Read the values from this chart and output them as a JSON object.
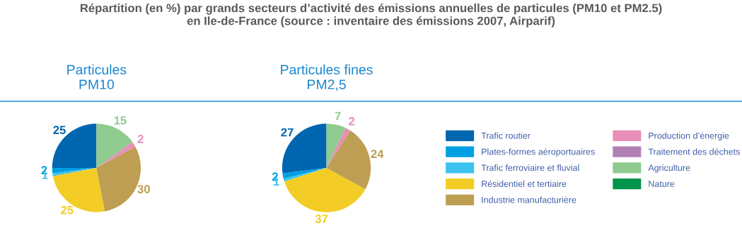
{
  "chart_data": [
    {
      "type": "pie",
      "title": "Particules\nPM10",
      "legend": "right",
      "annotations": [
        "Répartition (en %) par grands secteurs d’activité des émissions annuelles de particules (PM10 et PM2.5)\nen Ile-de-France (source : inventaire des émissions 2007, Airparif)"
      ],
      "categories": [
        "Trafic routier",
        "Plates-formes aéroportuaires",
        "Trafic ferroviaire et fluvial",
        "Résidentiel et tertiaire",
        "Industrie manufacturière",
        "Production d’énergie",
        "Traitement des déchets",
        "Agriculture",
        "Nature"
      ],
      "values": [
        25,
        2,
        1,
        25,
        30,
        2,
        0,
        15,
        0
      ],
      "value_labels": [
        "25",
        "2",
        "1",
        "25",
        "30",
        "2",
        null,
        "15",
        null
      ],
      "colors": [
        "#0066b0",
        "#009fe3",
        "#3cc3ef",
        "#f3cd25",
        "#bd9e52",
        "#e88fb8",
        "#b07fb4",
        "#8fcb8e",
        "#00954a"
      ]
    },
    {
      "type": "pie",
      "title": "Particules fines\nPM2,5",
      "categories": [
        null,
        null,
        null,
        null,
        null,
        null,
        null,
        null,
        null
      ],
      "values": [
        27,
        2,
        1,
        37,
        24,
        2,
        0,
        7,
        0
      ],
      "value_labels": [
        "27",
        "2",
        "1",
        "37",
        "24",
        "2",
        null,
        "7",
        null
      ],
      "colors": [
        "#0066b0",
        "#009fe3",
        "#3cc3ef",
        "#f3cd25",
        "#bd9e52",
        "#e88fb8",
        "#b07fb4",
        "#8fcb8e",
        "#00954a"
      ]
    }
  ]
}
